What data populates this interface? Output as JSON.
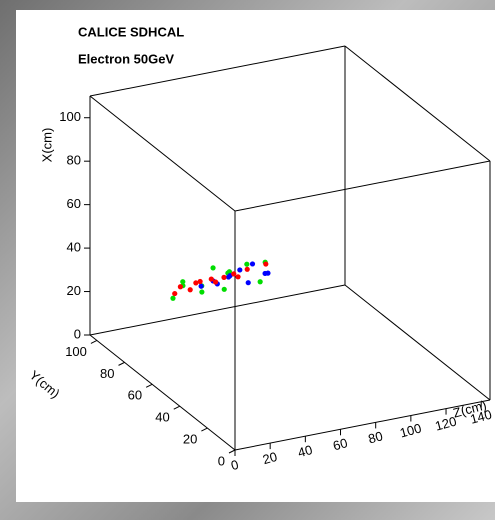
{
  "chart_data": {
    "type": "scatter3d",
    "title": "CALICE SDHCAL",
    "subtitle": "Electron 50GeV",
    "xlabel": "X(cm)",
    "ylabel": "Y(cm)",
    "zlabel": "Z(cm)",
    "xlim": [
      0,
      110
    ],
    "ylim": [
      0,
      105
    ],
    "zlim": [
      0,
      145
    ],
    "xticks": [
      0,
      20,
      40,
      60,
      80,
      100
    ],
    "yticks": [
      0,
      20,
      40,
      60,
      80,
      100
    ],
    "zticks": [
      0,
      20,
      40,
      60,
      80,
      100,
      120,
      140
    ],
    "series": [
      {
        "color": "#00dd00",
        "x": [
          44,
          52,
          47,
          49,
          43,
          55,
          46,
          50,
          48,
          53,
          45,
          51
        ],
        "y": [
          50,
          48,
          53,
          47,
          52,
          49,
          46,
          51,
          55,
          50,
          48,
          52
        ],
        "z": [
          4,
          8,
          12,
          18,
          22,
          26,
          30,
          36,
          40,
          46,
          52,
          58
        ]
      },
      {
        "color": "#0000ff",
        "x": [
          47,
          49,
          46,
          50,
          48,
          51,
          45,
          52,
          49,
          47
        ],
        "y": [
          50,
          49,
          51,
          48,
          52,
          50,
          49,
          51,
          47,
          50
        ],
        "z": [
          20,
          26,
          30,
          34,
          38,
          42,
          46,
          50,
          54,
          58
        ]
      },
      {
        "color": "#ff0000",
        "x": [
          46,
          48,
          47,
          49,
          48,
          50,
          47,
          49,
          51,
          48,
          50,
          52
        ],
        "y": [
          50,
          51,
          49,
          50,
          52,
          49,
          51,
          50,
          48,
          50,
          51,
          49
        ],
        "z": [
          5,
          9,
          13,
          17,
          21,
          25,
          29,
          33,
          37,
          41,
          47,
          56
        ]
      }
    ]
  }
}
